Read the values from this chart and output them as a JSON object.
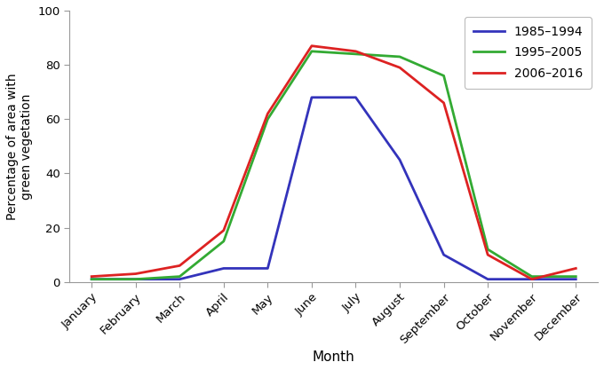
{
  "months": [
    "January",
    "February",
    "March",
    "April",
    "May",
    "June",
    "July",
    "August",
    "September",
    "October",
    "November",
    "December"
  ],
  "series": [
    {
      "label": "1985–1994",
      "color": "#3333bb",
      "values": [
        1,
        1,
        1,
        5,
        5,
        68,
        68,
        45,
        10,
        1,
        1,
        1
      ]
    },
    {
      "label": "1995–2005",
      "color": "#33aa33",
      "values": [
        1,
        1,
        2,
        15,
        60,
        85,
        84,
        83,
        76,
        12,
        2,
        2
      ]
    },
    {
      "label": "2006–2016",
      "color": "#dd2222",
      "values": [
        2,
        3,
        6,
        19,
        62,
        87,
        85,
        79,
        66,
        10,
        1,
        5
      ]
    }
  ],
  "xlabel": "Month",
  "ylabel": "Percentage of area with\ngreen vegetation",
  "ylim": [
    0,
    100
  ],
  "yticks": [
    0,
    20,
    40,
    60,
    80,
    100
  ],
  "legend_loc": "upper right",
  "linewidth": 2.0,
  "background_color": "#ffffff",
  "spine_color": "#999999",
  "figsize": [
    6.8,
    4.17
  ],
  "dpi": 100
}
